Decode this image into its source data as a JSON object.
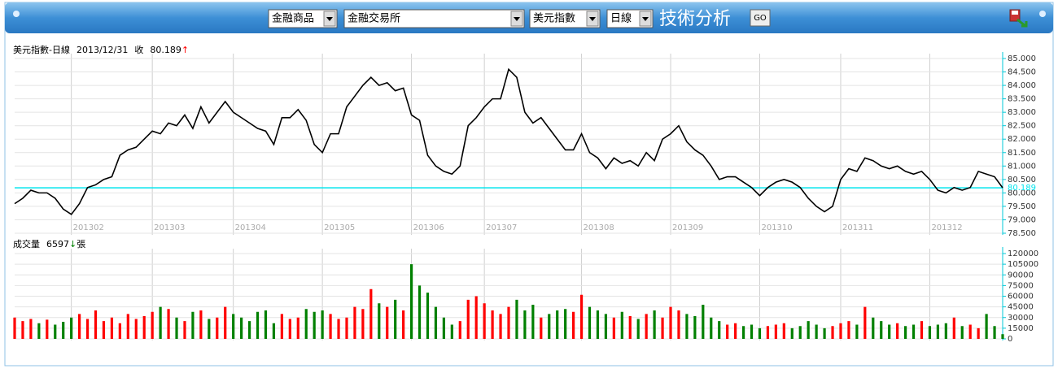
{
  "header": {
    "product": "金融商品",
    "exchange": "金融交易所",
    "symbol": "美元指數",
    "period": "日線",
    "title": "技術分析",
    "go": "GO"
  },
  "chart_data": [
    {
      "type": "line",
      "title": "美元指數-日線",
      "date": "2013/12/31",
      "close_label": "收",
      "close": 80.189,
      "arrow": "↑",
      "arrow_color": "#ff0000",
      "color": "#000000",
      "close_line_color": "#00e5ee",
      "grid": true,
      "categories": [
        null,
        null,
        null,
        null,
        null,
        null,
        null,
        "201302",
        null,
        null,
        null,
        null,
        null,
        null,
        null,
        null,
        null,
        "201303",
        null,
        null,
        null,
        null,
        null,
        null,
        null,
        null,
        null,
        "201304",
        null,
        null,
        null,
        null,
        null,
        null,
        null,
        null,
        null,
        null,
        "201305",
        null,
        null,
        null,
        null,
        null,
        null,
        null,
        null,
        null,
        null,
        "201306",
        null,
        null,
        null,
        null,
        null,
        null,
        null,
        null,
        "201307",
        null,
        null,
        null,
        null,
        null,
        null,
        null,
        null,
        null,
        null,
        null,
        "201308",
        null,
        null,
        null,
        null,
        null,
        null,
        null,
        null,
        null,
        null,
        "201309",
        null,
        null,
        null,
        null,
        null,
        null,
        null,
        null,
        null,
        null,
        "201310",
        null,
        null,
        null,
        null,
        null,
        null,
        null,
        null,
        null,
        "201311",
        null,
        null,
        null,
        null,
        null,
        null,
        null,
        null,
        null,
        null,
        "201312",
        null,
        null,
        null,
        null,
        null,
        null,
        null,
        null,
        null
      ],
      "values": [
        79.6,
        79.8,
        80.1,
        80.0,
        80.0,
        79.8,
        79.4,
        79.2,
        79.6,
        80.2,
        80.3,
        80.5,
        80.6,
        81.4,
        81.6,
        81.7,
        82.0,
        82.3,
        82.2,
        82.6,
        82.5,
        82.9,
        82.4,
        83.2,
        82.6,
        83.0,
        83.4,
        83.0,
        82.8,
        82.6,
        82.4,
        82.3,
        81.8,
        82.8,
        82.8,
        83.1,
        82.7,
        81.8,
        81.5,
        82.2,
        82.2,
        83.2,
        83.6,
        84.0,
        84.3,
        84.0,
        84.1,
        83.8,
        83.9,
        82.9,
        82.7,
        81.4,
        81.0,
        80.8,
        80.7,
        81.0,
        82.5,
        82.8,
        83.2,
        83.5,
        83.5,
        84.6,
        84.3,
        83.0,
        82.6,
        82.8,
        82.4,
        82.0,
        81.6,
        81.6,
        82.2,
        81.5,
        81.3,
        80.9,
        81.3,
        81.1,
        81.2,
        81.0,
        81.5,
        81.2,
        82.0,
        82.2,
        82.5,
        81.9,
        81.6,
        81.4,
        81.0,
        80.5,
        80.6,
        80.6,
        80.4,
        80.2,
        79.9,
        80.2,
        80.4,
        80.5,
        80.4,
        80.2,
        79.8,
        79.5,
        79.3,
        79.5,
        80.5,
        80.9,
        80.8,
        81.3,
        81.2,
        81.0,
        80.9,
        81.0,
        80.8,
        80.7,
        80.8,
        80.5,
        80.1,
        80.0,
        80.2,
        80.1,
        80.2,
        80.8,
        80.7,
        80.6,
        80.189
      ],
      "ylim": [
        78.5,
        85
      ],
      "yticks": [
        {
          "value": 78.5,
          "label": "78.500"
        },
        {
          "value": 79,
          "label": "79.000"
        },
        {
          "value": 79.5,
          "label": "79.500"
        },
        {
          "value": 80,
          "label": "80.000"
        },
        {
          "value": 80.5,
          "label": "80.500"
        },
        {
          "value": 81,
          "label": "81.000"
        },
        {
          "value": 81.5,
          "label": "81.500"
        },
        {
          "value": 82,
          "label": "82.000"
        },
        {
          "value": 82.5,
          "label": "82.500"
        },
        {
          "value": 83,
          "label": "83.000"
        },
        {
          "value": 83.5,
          "label": "83.500"
        },
        {
          "value": 84,
          "label": "84.000"
        },
        {
          "value": 84.5,
          "label": "84.500"
        },
        {
          "value": 85,
          "label": "85.000"
        }
      ]
    },
    {
      "type": "bar",
      "title": "成交量",
      "last_volume": 6597,
      "arrow": "↓",
      "unit": "張",
      "arrow_color": "#008000",
      "up_color": "#ff0000",
      "down_color": "#008000",
      "grid": true,
      "values": [
        30000,
        25000,
        28000,
        22000,
        27000,
        20000,
        24000,
        30000,
        35000,
        28000,
        40000,
        25000,
        30000,
        22000,
        35000,
        28000,
        32000,
        38000,
        45000,
        42000,
        30000,
        25000,
        38000,
        40000,
        28000,
        30000,
        45000,
        35000,
        30000,
        25000,
        38000,
        40000,
        22000,
        35000,
        28000,
        30000,
        42000,
        38000,
        40000,
        35000,
        28000,
        30000,
        45000,
        42000,
        70000,
        50000,
        45000,
        55000,
        40000,
        105000,
        75000,
        65000,
        45000,
        30000,
        20000,
        25000,
        55000,
        60000,
        50000,
        40000,
        35000,
        45000,
        55000,
        40000,
        48000,
        30000,
        35000,
        40000,
        42000,
        38000,
        62000,
        45000,
        40000,
        35000,
        30000,
        38000,
        32000,
        28000,
        35000,
        40000,
        30000,
        45000,
        40000,
        35000,
        32000,
        48000,
        30000,
        25000,
        20000,
        22000,
        18000,
        20000,
        15000,
        18000,
        20000,
        22000,
        15000,
        18000,
        25000,
        20000,
        15000,
        18000,
        22000,
        25000,
        20000,
        45000,
        30000,
        25000,
        20000,
        22000,
        18000,
        20000,
        25000,
        18000,
        20000,
        22000,
        30000,
        18000,
        20000,
        15000,
        35000,
        18000,
        6597
      ],
      "ylim": [
        0,
        120000
      ],
      "yticks": [
        0,
        15000,
        30000,
        45000,
        60000,
        75000,
        90000,
        105000,
        120000
      ]
    }
  ]
}
